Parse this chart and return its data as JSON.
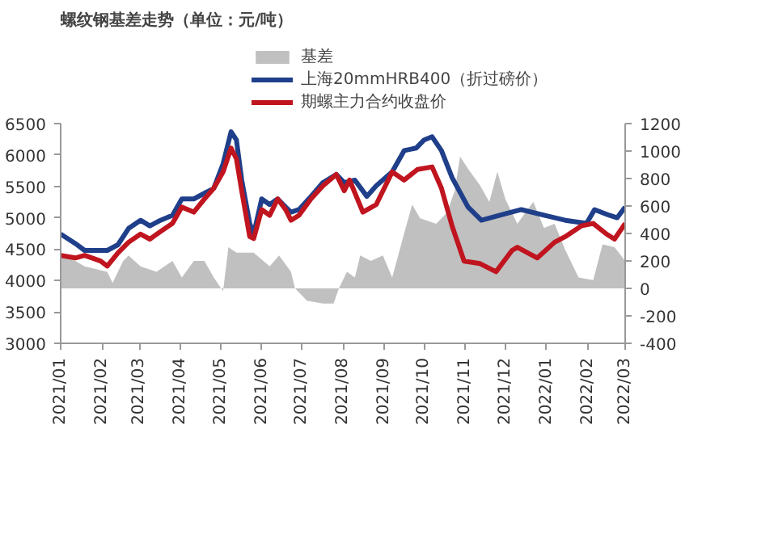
{
  "chart_data": {
    "type": "line",
    "title": "螺纹钢基差走势（单位：元/吨）",
    "xlim": [
      "2021-01-01",
      "2022-03-01"
    ],
    "xticks": [
      {
        "value": "2021-01-01",
        "label": "2021/01"
      },
      {
        "value": "2021-02-01",
        "label": "2021/02"
      },
      {
        "value": "2021-03-01",
        "label": "2021/03"
      },
      {
        "value": "2021-04-01",
        "label": "2021/04"
      },
      {
        "value": "2021-05-01",
        "label": "2021/05"
      },
      {
        "value": "2021-06-01",
        "label": "2021/06"
      },
      {
        "value": "2021-07-01",
        "label": "2021/07"
      },
      {
        "value": "2021-08-01",
        "label": "2021/08"
      },
      {
        "value": "2021-09-01",
        "label": "2021/09"
      },
      {
        "value": "2021-10-01",
        "label": "2021/10"
      },
      {
        "value": "2021-11-01",
        "label": "2021/11"
      },
      {
        "value": "2021-12-01",
        "label": "2021/12"
      },
      {
        "value": "2022-01-01",
        "label": "2022/01"
      },
      {
        "value": "2022-02-01",
        "label": "2022/02"
      },
      {
        "value": "2022-03-01",
        "label": "2022/03"
      }
    ],
    "ylim": [
      3000,
      6500
    ],
    "yticks": [
      3000,
      3500,
      4000,
      4500,
      5000,
      5500,
      6000,
      6500
    ],
    "y2lim": [
      -400,
      1200
    ],
    "y2ticks": [
      -400,
      -200,
      0,
      200,
      400,
      600,
      800,
      1000,
      1200
    ],
    "legend": "top",
    "grid": false,
    "series": [
      {
        "name": "基差",
        "type": "area",
        "axis": "y2",
        "color": "#c0c0c0",
        "x": [
          "2021-01-01",
          "2021-01-12",
          "2021-01-19",
          "2021-02-05",
          "2021-02-09",
          "2021-02-17",
          "2021-02-21",
          "2021-03-02",
          "2021-03-14",
          "2021-03-26",
          "2021-04-02",
          "2021-04-11",
          "2021-04-19",
          "2021-04-26",
          "2021-05-03",
          "2021-05-07",
          "2021-05-13",
          "2021-05-26",
          "2021-06-07",
          "2021-06-14",
          "2021-06-23",
          "2021-06-26",
          "2021-07-05",
          "2021-07-17",
          "2021-07-25",
          "2021-07-29",
          "2021-08-04",
          "2021-08-10",
          "2021-08-14",
          "2021-08-22",
          "2021-08-31",
          "2021-09-07",
          "2021-09-16",
          "2021-09-22",
          "2021-09-28",
          "2021-10-10",
          "2021-10-18",
          "2021-10-24",
          "2021-10-28",
          "2021-11-03",
          "2021-11-12",
          "2021-11-19",
          "2021-11-25",
          "2021-12-01",
          "2021-12-10",
          "2021-12-22",
          "2021-12-30",
          "2022-01-07",
          "2022-01-15",
          "2022-01-25",
          "2022-02-05",
          "2022-02-12",
          "2022-02-21",
          "2022-03-01"
        ],
        "values": [
          240,
          200,
          160,
          120,
          40,
          200,
          240,
          160,
          120,
          200,
          80,
          200,
          200,
          80,
          -20,
          300,
          260,
          260,
          160,
          240,
          120,
          0,
          -90,
          -110,
          -110,
          0,
          120,
          80,
          240,
          200,
          240,
          80,
          400,
          610,
          510,
          470,
          550,
          710,
          960,
          870,
          750,
          630,
          850,
          650,
          470,
          630,
          440,
          470,
          280,
          80,
          60,
          320,
          300,
          200
        ]
      },
      {
        "name": "上海20mmHRB400（折过磅价）",
        "color": "#1f3f8a",
        "x": [
          "2021-01-01",
          "2021-01-12",
          "2021-01-19",
          "2021-02-05",
          "2021-02-13",
          "2021-02-21",
          "2021-03-02",
          "2021-03-09",
          "2021-03-17",
          "2021-03-26",
          "2021-04-02",
          "2021-04-11",
          "2021-04-19",
          "2021-04-26",
          "2021-05-03",
          "2021-05-09",
          "2021-05-13",
          "2021-05-17",
          "2021-05-23",
          "2021-05-26",
          "2021-06-01",
          "2021-06-07",
          "2021-06-13",
          "2021-06-19",
          "2021-06-23",
          "2021-06-29",
          "2021-07-08",
          "2021-07-17",
          "2021-07-27",
          "2021-08-02",
          "2021-08-10",
          "2021-08-19",
          "2021-08-26",
          "2021-09-07",
          "2021-09-16",
          "2021-09-25",
          "2021-10-01",
          "2021-10-07",
          "2021-10-14",
          "2021-10-22",
          "2021-11-03",
          "2021-11-13",
          "2021-11-27",
          "2021-12-13",
          "2021-12-30",
          "2022-01-15",
          "2022-01-31",
          "2022-02-06",
          "2022-02-17",
          "2022-02-23",
          "2022-03-01"
        ],
        "values": [
          4740,
          4590,
          4480,
          4480,
          4570,
          4830,
          4960,
          4870,
          4960,
          5040,
          5300,
          5300,
          5390,
          5470,
          5860,
          6370,
          6240,
          5600,
          4910,
          4740,
          5300,
          5210,
          5300,
          5170,
          5090,
          5130,
          5340,
          5560,
          5690,
          5560,
          5600,
          5340,
          5510,
          5730,
          6070,
          6110,
          6240,
          6290,
          6070,
          5640,
          5170,
          4960,
          5040,
          5130,
          5040,
          4960,
          4910,
          5130,
          5040,
          5000,
          5170
        ]
      },
      {
        "name": "期螺主力合约收盘价",
        "color": "#c0151f",
        "x": [
          "2021-01-01",
          "2021-01-12",
          "2021-01-19",
          "2021-01-31",
          "2021-02-05",
          "2021-02-13",
          "2021-02-21",
          "2021-03-02",
          "2021-03-09",
          "2021-03-17",
          "2021-03-26",
          "2021-04-02",
          "2021-04-11",
          "2021-04-19",
          "2021-04-26",
          "2021-05-03",
          "2021-05-09",
          "2021-05-13",
          "2021-05-17",
          "2021-05-23",
          "2021-05-26",
          "2021-06-01",
          "2021-06-07",
          "2021-06-13",
          "2021-06-19",
          "2021-06-23",
          "2021-06-29",
          "2021-07-08",
          "2021-07-17",
          "2021-07-27",
          "2021-08-02",
          "2021-08-06",
          "2021-08-16",
          "2021-08-26",
          "2021-09-07",
          "2021-09-16",
          "2021-09-26",
          "2021-10-07",
          "2021-10-14",
          "2021-10-22",
          "2021-10-31",
          "2021-11-12",
          "2021-11-24",
          "2021-12-06",
          "2021-12-10",
          "2021-12-25",
          "2022-01-07",
          "2022-01-15",
          "2022-01-27",
          "2022-02-05",
          "2022-02-15",
          "2022-02-21",
          "2022-03-01"
        ],
        "values": [
          4400,
          4360,
          4400,
          4310,
          4230,
          4440,
          4610,
          4740,
          4660,
          4780,
          4910,
          5170,
          5090,
          5300,
          5470,
          5730,
          6110,
          5940,
          5430,
          4700,
          4670,
          5130,
          5040,
          5300,
          5130,
          4960,
          5040,
          5300,
          5510,
          5690,
          5430,
          5600,
          5090,
          5210,
          5730,
          5600,
          5770,
          5810,
          5470,
          4870,
          4310,
          4270,
          4140,
          4480,
          4530,
          4360,
          4610,
          4700,
          4870,
          4910,
          4740,
          4660,
          4910
        ]
      }
    ]
  }
}
